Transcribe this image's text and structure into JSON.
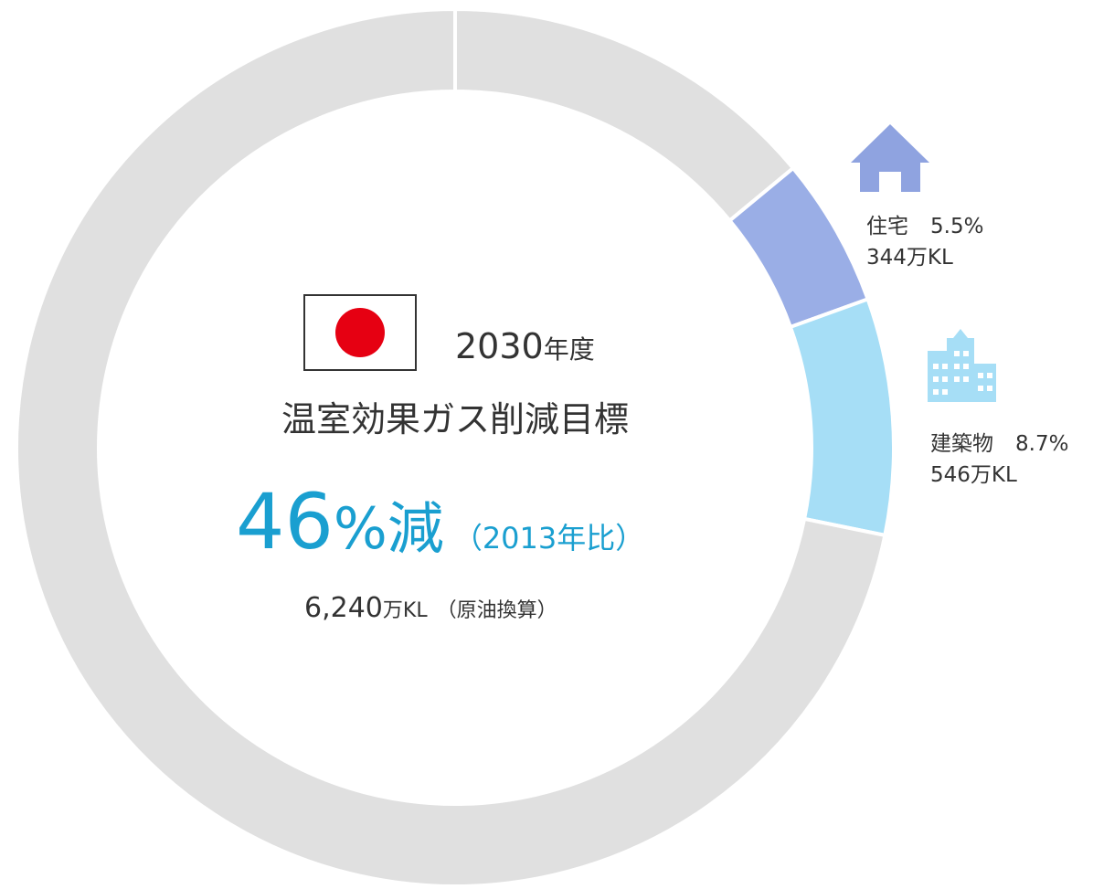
{
  "chart_data": {
    "type": "donut",
    "categories": [
      null,
      "住宅",
      "建築物",
      null
    ],
    "values": [
      14,
      5.5,
      8.7,
      71.8
    ],
    "value_labels": [
      null,
      "5.5%",
      "8.7%",
      null
    ],
    "sublabels": [
      null,
      "344万KL",
      "546万KL",
      null
    ],
    "colors": [
      "#e0e0e0",
      "#9aaee6",
      "#a6def6",
      "#e0e0e0"
    ],
    "center": {
      "year": "2030",
      "year_suffix": "年度",
      "heading": "温室効果ガス削減目標",
      "target": "46",
      "target_unit": "%減",
      "baseline": "（2013年比）",
      "total": "6,240",
      "total_unit": "万KL",
      "total_note": "（原油換算）"
    }
  }
}
